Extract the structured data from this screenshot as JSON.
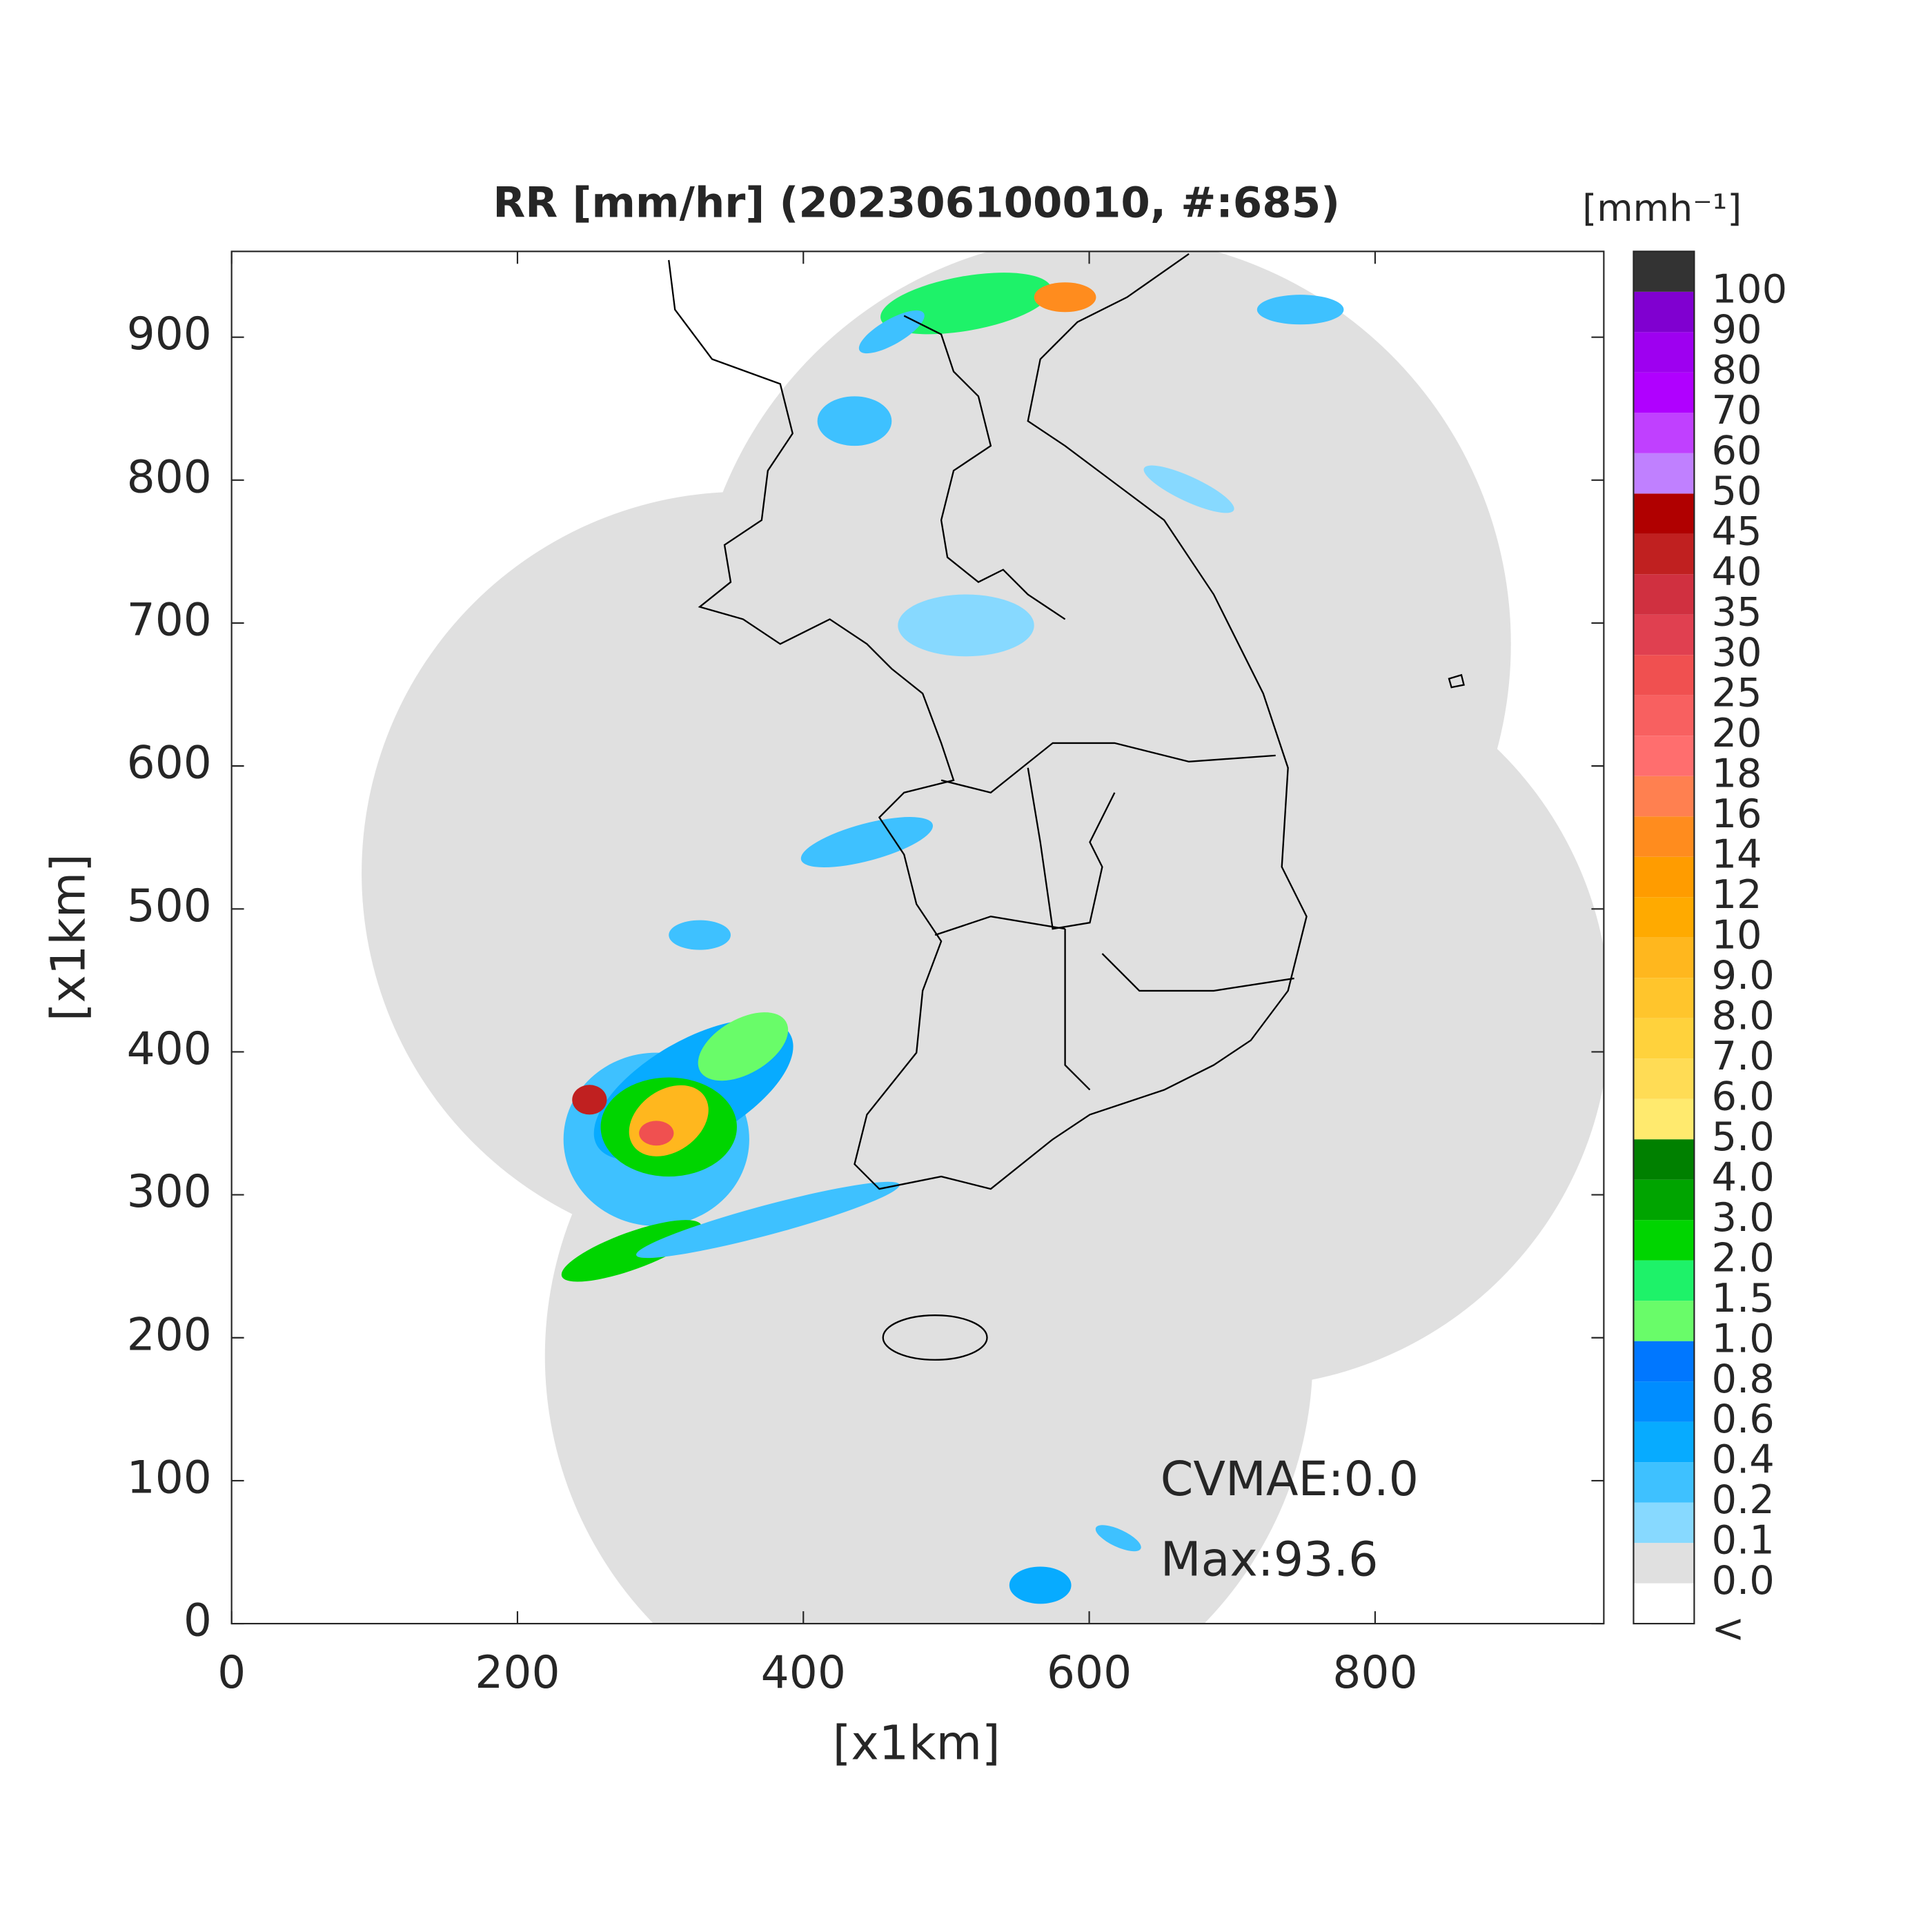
{
  "chart_data": {
    "type": "map",
    "title": "RR [mm/hr] (202306100010, #:685)",
    "x_label": "[x1km]",
    "y_label": "[x1km]",
    "xlim": [
      0,
      960
    ],
    "ylim": [
      0,
      960
    ],
    "xticks": [
      0,
      200,
      400,
      600,
      800
    ],
    "yticks": [
      0,
      100,
      200,
      300,
      400,
      500,
      600,
      700,
      800,
      900
    ],
    "annotations": [
      "CVMAE:0.0",
      "Max:93.6"
    ],
    "colorbar": {
      "title": "[mmh⁻¹]",
      "labels": [
        "<",
        "0.0",
        "0.1",
        "0.2",
        "0.4",
        "0.6",
        "0.8",
        "1.0",
        "1.5",
        "2.0",
        "3.0",
        "4.0",
        "5.0",
        "6.0",
        "7.0",
        "8.0",
        "9.0",
        "10",
        "12",
        "14",
        "16",
        "18",
        "20",
        "25",
        "30",
        "35",
        "40",
        "45",
        "50",
        "60",
        "70",
        "80",
        "90",
        "100"
      ],
      "colors": [
        "#ffffff",
        "#e0e0e0",
        "#87d9ff",
        "#3ec1ff",
        "#07abff",
        "#008dff",
        "#0077ff",
        "#69fc69",
        "#1ef269",
        "#00d500",
        "#00a400",
        "#008000",
        "#ffea6e",
        "#ffdc55",
        "#ffd23c",
        "#ffc52c",
        "#ffb71e",
        "#ffaa00",
        "#ff9c00",
        "#ff8c1e",
        "#ff8050",
        "#ff6e6e",
        "#f86060",
        "#f05050",
        "#e04050",
        "#d03040",
        "#c02020",
        "#b00000",
        "#c080ff",
        "#c040ff",
        "#b000ff",
        "#9e00f0",
        "#8000d0",
        "#333333"
      ]
    }
  }
}
